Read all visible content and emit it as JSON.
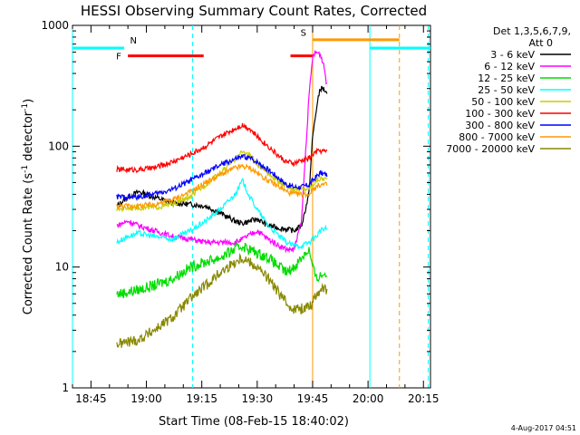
{
  "chart_data": {
    "type": "line",
    "title": "HESSI Observing Summary Count Rates, Corrected",
    "xlabel": "Start Time (08-Feb-15 18:40:02)",
    "ylabel": "Corrected Count Rate (s⁻¹ detector⁻¹)",
    "ylabel_main": "Corrected Count Rate (s",
    "ylabel_sup1": "-1",
    "ylabel_mid": " detector",
    "ylabel_sup2": "-1",
    "ylabel_end": ")",
    "y_scale": "log",
    "ylim": [
      1,
      1000
    ],
    "xlim_minutes_from_start": [
      0,
      96.9
    ],
    "yticks": [
      {
        "value": 1,
        "label": "1"
      },
      {
        "value": 10,
        "label": "10"
      },
      {
        "value": 100,
        "label": "100"
      },
      {
        "value": 1000,
        "label": "1000"
      }
    ],
    "xticks": [
      {
        "minute": 5,
        "label": "18:45"
      },
      {
        "minute": 20,
        "label": "19:00"
      },
      {
        "minute": 35,
        "label": "19:15"
      },
      {
        "minute": 50,
        "label": "19:30"
      },
      {
        "minute": 65,
        "label": "19:45"
      },
      {
        "minute": 80,
        "label": "20:00"
      },
      {
        "minute": 95,
        "label": "20:15"
      }
    ],
    "legend_placement": "right",
    "legend_header": [
      "Det 1,3,5,6,7,9,",
      "Att 0"
    ],
    "timestamp": "4-Aug-2017 04:51",
    "series": [
      {
        "name": "3 - 6 keV",
        "color": "#000000",
        "points": [
          [
            12,
            32
          ],
          [
            15,
            38
          ],
          [
            18,
            42
          ],
          [
            22,
            38
          ],
          [
            27,
            34
          ],
          [
            32,
            33
          ],
          [
            36,
            32
          ],
          [
            40,
            28
          ],
          [
            44,
            24
          ],
          [
            46,
            23
          ],
          [
            50,
            25
          ],
          [
            53,
            22
          ],
          [
            56,
            21
          ],
          [
            60,
            20
          ],
          [
            62,
            22
          ],
          [
            64,
            40
          ],
          [
            65,
            120
          ],
          [
            66,
            200
          ],
          [
            67,
            300
          ],
          [
            68,
            300
          ],
          [
            69,
            260
          ]
        ]
      },
      {
        "name": "6 - 12 keV",
        "color": "#ff00ff",
        "points": [
          [
            12,
            22
          ],
          [
            15,
            24
          ],
          [
            18,
            22
          ],
          [
            22,
            20
          ],
          [
            27,
            18
          ],
          [
            32,
            17
          ],
          [
            36,
            16
          ],
          [
            40,
            16
          ],
          [
            44,
            16
          ],
          [
            46,
            17
          ],
          [
            50,
            20
          ],
          [
            53,
            17
          ],
          [
            56,
            15
          ],
          [
            58,
            14
          ],
          [
            60,
            14
          ],
          [
            62,
            24
          ],
          [
            63,
            80
          ],
          [
            64,
            250
          ],
          [
            65,
            550
          ],
          [
            66,
            600
          ],
          [
            67,
            580
          ],
          [
            68,
            480
          ],
          [
            69,
            300
          ]
        ]
      },
      {
        "name": "12 - 25 keV",
        "color": "#00dd00",
        "points": [
          [
            12,
            6
          ],
          [
            15,
            6.2
          ],
          [
            18,
            6.5
          ],
          [
            22,
            7
          ],
          [
            27,
            8
          ],
          [
            32,
            10
          ],
          [
            36,
            11
          ],
          [
            40,
            12
          ],
          [
            44,
            14
          ],
          [
            46,
            15
          ],
          [
            50,
            13
          ],
          [
            53,
            12
          ],
          [
            56,
            10
          ],
          [
            58,
            9
          ],
          [
            60,
            10
          ],
          [
            62,
            12
          ],
          [
            64,
            14
          ],
          [
            65,
            10
          ],
          [
            66,
            8
          ],
          [
            67,
            8.5
          ],
          [
            69,
            9
          ]
        ]
      },
      {
        "name": "25 - 50 keV",
        "color": "#00ffff",
        "points": [
          [
            12,
            16
          ],
          [
            15,
            18
          ],
          [
            18,
            19
          ],
          [
            22,
            18
          ],
          [
            27,
            17
          ],
          [
            32,
            20
          ],
          [
            36,
            24
          ],
          [
            40,
            30
          ],
          [
            44,
            40
          ],
          [
            46,
            52
          ],
          [
            48,
            38
          ],
          [
            50,
            30
          ],
          [
            53,
            22
          ],
          [
            56,
            18
          ],
          [
            58,
            16
          ],
          [
            60,
            15
          ],
          [
            62,
            15
          ],
          [
            64,
            16
          ],
          [
            65,
            17
          ],
          [
            66,
            18
          ],
          [
            67,
            20
          ],
          [
            69,
            21
          ]
        ]
      },
      {
        "name": "50 - 100 keV",
        "color": "#cccc00",
        "points": [
          [
            12,
            30
          ],
          [
            15,
            31
          ],
          [
            18,
            31
          ],
          [
            22,
            31
          ],
          [
            27,
            33
          ],
          [
            32,
            38
          ],
          [
            36,
            48
          ],
          [
            40,
            60
          ],
          [
            44,
            78
          ],
          [
            46,
            90
          ],
          [
            48,
            85
          ],
          [
            50,
            70
          ],
          [
            53,
            60
          ],
          [
            56,
            50
          ],
          [
            58,
            46
          ],
          [
            60,
            44
          ],
          [
            62,
            44
          ],
          [
            64,
            45
          ],
          [
            65,
            48
          ],
          [
            66,
            52
          ],
          [
            67,
            54
          ],
          [
            69,
            54
          ]
        ]
      },
      {
        "name": "100 - 300 keV",
        "color": "#ff0000",
        "points": [
          [
            12,
            64
          ],
          [
            15,
            64
          ],
          [
            18,
            64
          ],
          [
            22,
            66
          ],
          [
            27,
            74
          ],
          [
            32,
            86
          ],
          [
            36,
            100
          ],
          [
            40,
            120
          ],
          [
            44,
            140
          ],
          [
            46,
            150
          ],
          [
            48,
            140
          ],
          [
            50,
            120
          ],
          [
            53,
            100
          ],
          [
            56,
            82
          ],
          [
            58,
            74
          ],
          [
            60,
            72
          ],
          [
            62,
            76
          ],
          [
            64,
            80
          ],
          [
            65,
            85
          ],
          [
            66,
            90
          ],
          [
            67,
            92
          ],
          [
            69,
            90
          ]
        ]
      },
      {
        "name": "300 - 800 keV",
        "color": "#0000ff",
        "points": [
          [
            12,
            38
          ],
          [
            15,
            38
          ],
          [
            18,
            38
          ],
          [
            22,
            40
          ],
          [
            27,
            44
          ],
          [
            32,
            52
          ],
          [
            36,
            60
          ],
          [
            40,
            70
          ],
          [
            44,
            78
          ],
          [
            46,
            82
          ],
          [
            48,
            80
          ],
          [
            50,
            74
          ],
          [
            53,
            64
          ],
          [
            56,
            54
          ],
          [
            58,
            48
          ],
          [
            60,
            46
          ],
          [
            62,
            46
          ],
          [
            64,
            48
          ],
          [
            65,
            52
          ],
          [
            66,
            56
          ],
          [
            67,
            60
          ],
          [
            69,
            58
          ]
        ]
      },
      {
        "name": "800 - 7000 keV",
        "color": "#ff9900",
        "points": [
          [
            12,
            32
          ],
          [
            15,
            32
          ],
          [
            18,
            32
          ],
          [
            22,
            33
          ],
          [
            27,
            36
          ],
          [
            32,
            42
          ],
          [
            36,
            50
          ],
          [
            40,
            58
          ],
          [
            44,
            66
          ],
          [
            46,
            68
          ],
          [
            48,
            66
          ],
          [
            50,
            60
          ],
          [
            53,
            52
          ],
          [
            56,
            46
          ],
          [
            58,
            42
          ],
          [
            60,
            40
          ],
          [
            62,
            40
          ],
          [
            64,
            40
          ],
          [
            65,
            44
          ],
          [
            66,
            46
          ],
          [
            67,
            48
          ],
          [
            69,
            48
          ]
        ]
      },
      {
        "name": "7000 - 20000 keV",
        "color": "#888800",
        "points": [
          [
            12,
            2.3
          ],
          [
            15,
            2.4
          ],
          [
            18,
            2.5
          ],
          [
            22,
            3
          ],
          [
            27,
            3.8
          ],
          [
            32,
            5.5
          ],
          [
            36,
            7
          ],
          [
            40,
            9
          ],
          [
            44,
            11
          ],
          [
            46,
            12
          ],
          [
            48,
            11
          ],
          [
            50,
            10
          ],
          [
            53,
            8
          ],
          [
            56,
            6
          ],
          [
            58,
            5
          ],
          [
            60,
            4.5
          ],
          [
            62,
            4.5
          ],
          [
            64,
            4.8
          ],
          [
            65,
            5
          ],
          [
            66,
            6
          ],
          [
            67,
            6.5
          ],
          [
            69,
            6.5
          ]
        ]
      }
    ],
    "annotations": {
      "night_lines": [
        {
          "minute": 0,
          "color": "#00ffff"
        },
        {
          "minute": 32.5,
          "color": "#00ffff",
          "dashed": true
        },
        {
          "minute": 80.5,
          "color": "#00ffff"
        },
        {
          "minute": 96.3,
          "color": "#00ffff",
          "dashed": true
        }
      ],
      "saa_lines": [
        {
          "minute": 65,
          "color": "#ff9900"
        },
        {
          "minute": 88.5,
          "color": "#ff9900",
          "dashed": true
        }
      ],
      "bars": [
        {
          "label": "N",
          "color": "#00ffff",
          "from": 0,
          "to": 14,
          "level": 650
        },
        {
          "label": "N",
          "color": "#00ffff",
          "from": 80.5,
          "to": 96.9,
          "level": 650
        },
        {
          "label": "F",
          "color": "#ff0000",
          "from": 15,
          "to": 35.5,
          "level": 560
        },
        {
          "label": "F",
          "color": "#ff0000",
          "from": 59,
          "to": 65,
          "level": 560
        },
        {
          "label": "S",
          "color": "#ff9900",
          "from": 65,
          "to": 88.5,
          "level": 760
        }
      ],
      "bar_labels": [
        {
          "text": "N",
          "color": "#00ffff",
          "minute": 16.5,
          "level": 760
        },
        {
          "text": "F",
          "color": "#ff0000",
          "minute": 12.5,
          "level": 560
        },
        {
          "text": "S",
          "color": "#ff9900",
          "minute": 62.5,
          "level": 880
        }
      ]
    }
  }
}
